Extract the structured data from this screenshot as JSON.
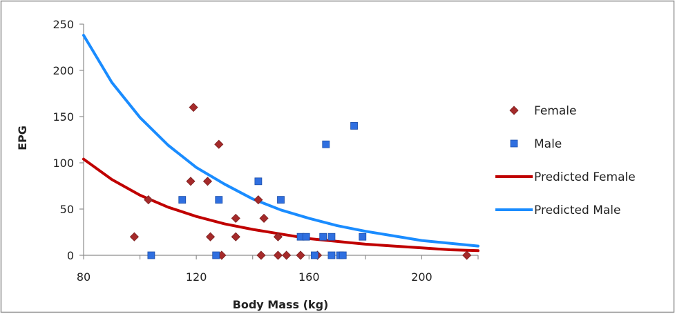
{
  "chart_data": {
    "type": "scatter",
    "xlabel": "Body Mass (kg)",
    "ylabel": "EPG",
    "xlim": [
      80,
      220
    ],
    "ylim": [
      0,
      250
    ],
    "xticks": [
      80,
      120,
      160,
      200
    ],
    "yticks": [
      0,
      50,
      100,
      150,
      200,
      250
    ],
    "grid": false,
    "legend_position": "right",
    "series": [
      {
        "name": "Female",
        "kind": "scatter",
        "marker": "diamond",
        "color": "#a52a2a",
        "points": [
          [
            98,
            20
          ],
          [
            103,
            60
          ],
          [
            118,
            80
          ],
          [
            119,
            160
          ],
          [
            124,
            80
          ],
          [
            125,
            20
          ],
          [
            128,
            120
          ],
          [
            129,
            0
          ],
          [
            134,
            40
          ],
          [
            134,
            20
          ],
          [
            142,
            60
          ],
          [
            143,
            0
          ],
          [
            144,
            40
          ],
          [
            149,
            20
          ],
          [
            149,
            0
          ],
          [
            152,
            0
          ],
          [
            157,
            0
          ],
          [
            163,
            0
          ],
          [
            216,
            0
          ]
        ]
      },
      {
        "name": "Male",
        "kind": "scatter",
        "marker": "square",
        "color": "#2f6fe0",
        "points": [
          [
            104,
            0
          ],
          [
            115,
            60
          ],
          [
            127,
            0
          ],
          [
            128,
            60
          ],
          [
            142,
            80
          ],
          [
            150,
            60
          ],
          [
            157,
            20
          ],
          [
            159,
            20
          ],
          [
            162,
            0
          ],
          [
            165,
            20
          ],
          [
            166,
            120
          ],
          [
            168,
            20
          ],
          [
            168,
            0
          ],
          [
            171,
            0
          ],
          [
            172,
            0
          ],
          [
            176,
            140
          ],
          [
            179,
            20
          ]
        ]
      },
      {
        "name": "Predicted Female",
        "kind": "line",
        "color": "#c00000",
        "x": [
          80,
          90,
          100,
          110,
          120,
          130,
          140,
          150,
          160,
          170,
          180,
          190,
          200,
          210,
          220
        ],
        "y": [
          104,
          82,
          65,
          52,
          42,
          34,
          28,
          23,
          18,
          15,
          12,
          10,
          8,
          6,
          5
        ]
      },
      {
        "name": "Predicted Male",
        "kind": "line",
        "color": "#1a8cff",
        "x": [
          80,
          90,
          100,
          110,
          120,
          130,
          140,
          150,
          160,
          170,
          180,
          190,
          200,
          210,
          220
        ],
        "y": [
          238,
          187,
          149,
          119,
          95,
          77,
          61,
          49,
          40,
          32,
          26,
          21,
          16,
          13,
          10
        ]
      }
    ]
  }
}
